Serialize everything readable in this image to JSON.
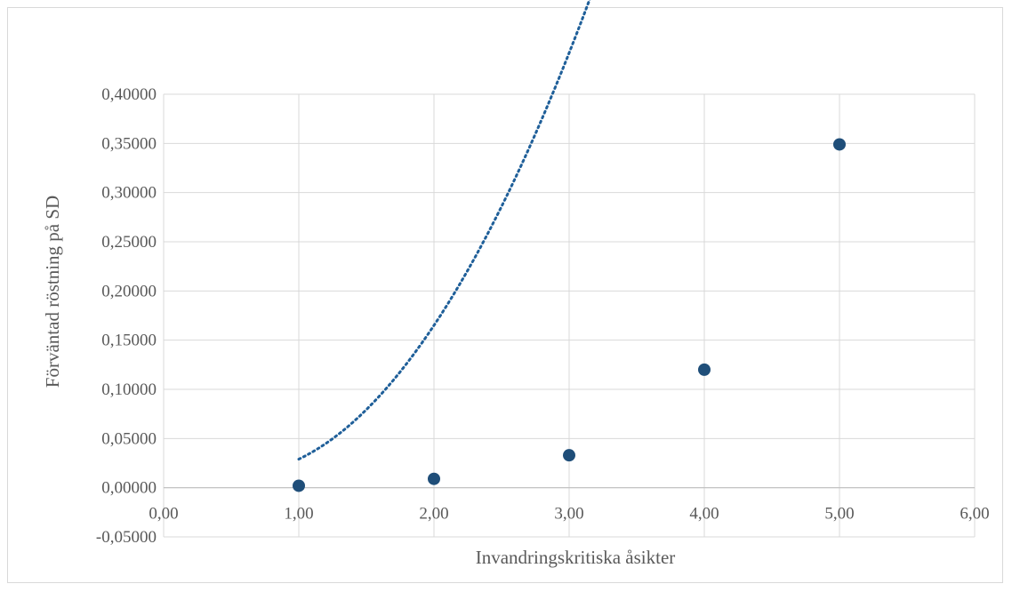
{
  "chart_data": {
    "type": "scatter",
    "title": "",
    "xlabel": "Invandringskritiska åsikter",
    "ylabel": "Förväntad röstning på SD",
    "xlim": [
      0,
      6
    ],
    "ylim": [
      -0.05,
      0.4
    ],
    "x_ticks": [
      0,
      1,
      2,
      3,
      4,
      5,
      6
    ],
    "y_ticks": [
      -0.05,
      0,
      0.05,
      0.1,
      0.15,
      0.2,
      0.25,
      0.3,
      0.35,
      0.4
    ],
    "x_tick_labels": [
      "0,00",
      "1,00",
      "2,00",
      "3,00",
      "4,00",
      "5,00",
      "6,00"
    ],
    "y_tick_labels": [
      "-0,05000",
      "0,00000",
      "0,05000",
      "0,10000",
      "0,15000",
      "0,20000",
      "0,25000",
      "0,30000",
      "0,35000",
      "0,40000"
    ],
    "grid": true,
    "legend": "none",
    "series": [
      {
        "x": [
          1,
          2,
          3,
          4,
          5
        ],
        "values": [
          0.002,
          0.009,
          0.033,
          0.12,
          0.349
        ],
        "color": "#1f4e79"
      }
    ],
    "trendline": {
      "type": "polynomial-2",
      "style": "dotted",
      "color": "#1f5f99",
      "x_range": [
        1,
        5
      ],
      "coefficients": [
        0.034,
        -0.0755,
        0.0705
      ]
    }
  }
}
